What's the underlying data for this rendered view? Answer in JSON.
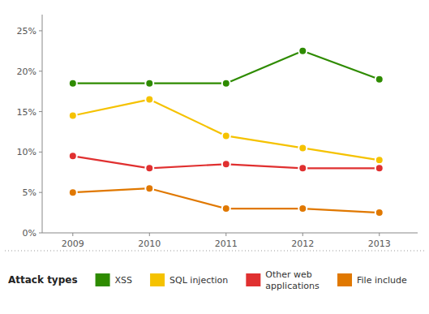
{
  "chart_data": {
    "type": "line",
    "x": [
      2009,
      2010,
      2011,
      2012,
      2013
    ],
    "series": [
      {
        "name": "XSS",
        "color": "#2e8b00",
        "values": [
          18.5,
          18.5,
          18.5,
          22.5,
          19.0
        ]
      },
      {
        "name": "SQL injection",
        "color": "#f5c200",
        "values": [
          14.5,
          16.5,
          12.0,
          10.5,
          9.0
        ]
      },
      {
        "name": "Other web\napplications",
        "color": "#e03030",
        "values": [
          9.5,
          8.0,
          8.5,
          8.0,
          8.0
        ]
      },
      {
        "name": "File include",
        "color": "#e07800",
        "values": [
          5.0,
          5.5,
          3.0,
          3.0,
          2.5
        ]
      }
    ],
    "legend_title": "Attack types",
    "xlim": [
      2008.6,
      2013.5
    ],
    "xticks": [
      2009,
      2010,
      2011,
      2012,
      2013
    ],
    "ylim": [
      0,
      27
    ],
    "yticks": [
      {
        "value": 0,
        "label": "0%"
      },
      {
        "value": 5,
        "label": "5%"
      },
      {
        "value": 10,
        "label": "10%"
      },
      {
        "value": 15,
        "label": "15%"
      },
      {
        "value": 20,
        "label": "20%"
      },
      {
        "value": 25,
        "label": "25%"
      }
    ],
    "grid": false,
    "legend": "bottom",
    "marker": "circle"
  }
}
